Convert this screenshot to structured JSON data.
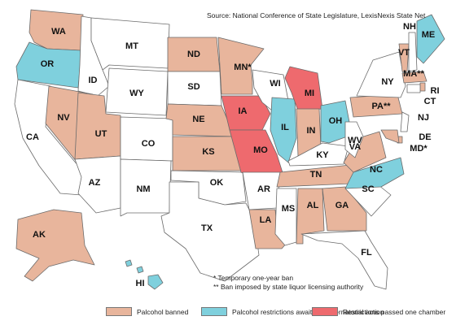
{
  "source": "Source: National Conference of State Legislature, LexisNexis State Net",
  "notes": [
    "* Temporary one-year ban",
    "** Ban imposed by state liquor licensing authority"
  ],
  "colors": {
    "banned": "#e8b59c",
    "awaiting": "#7fd0dd",
    "passed_one_chamber": "#ee6a6e",
    "none": "#ffffff"
  },
  "legend": [
    {
      "label": "Palcohol banned",
      "status": "banned"
    },
    {
      "label": "Palcohol restrictions awaiting gubernatorial action",
      "status": "awaiting"
    },
    {
      "label": "Restrictions passed one chamber",
      "status": "passed_one_chamber"
    }
  ],
  "states": [
    {
      "abbr": "WA",
      "status": "banned"
    },
    {
      "abbr": "OR",
      "status": "awaiting"
    },
    {
      "abbr": "CA",
      "status": "none"
    },
    {
      "abbr": "ID",
      "status": "none"
    },
    {
      "abbr": "NV",
      "status": "banned"
    },
    {
      "abbr": "MT",
      "status": "none"
    },
    {
      "abbr": "WY",
      "status": "none"
    },
    {
      "abbr": "UT",
      "status": "banned"
    },
    {
      "abbr": "AZ",
      "status": "none"
    },
    {
      "abbr": "CO",
      "status": "none"
    },
    {
      "abbr": "NM",
      "status": "none"
    },
    {
      "abbr": "ND",
      "status": "banned"
    },
    {
      "abbr": "SD",
      "status": "none"
    },
    {
      "abbr": "NE",
      "status": "banned"
    },
    {
      "abbr": "KS",
      "status": "banned"
    },
    {
      "abbr": "OK",
      "status": "none"
    },
    {
      "abbr": "TX",
      "status": "none"
    },
    {
      "abbr": "MN*",
      "status": "banned"
    },
    {
      "abbr": "IA",
      "status": "passed_one_chamber"
    },
    {
      "abbr": "MO",
      "status": "passed_one_chamber"
    },
    {
      "abbr": "AR",
      "status": "none"
    },
    {
      "abbr": "LA",
      "status": "banned"
    },
    {
      "abbr": "WI",
      "status": "none"
    },
    {
      "abbr": "IL",
      "status": "awaiting"
    },
    {
      "abbr": "MS",
      "status": "none"
    },
    {
      "abbr": "MI",
      "status": "passed_one_chamber"
    },
    {
      "abbr": "IN",
      "status": "banned"
    },
    {
      "abbr": "OH",
      "status": "awaiting"
    },
    {
      "abbr": "KY",
      "status": "none"
    },
    {
      "abbr": "TN",
      "status": "banned"
    },
    {
      "abbr": "AL",
      "status": "banned"
    },
    {
      "abbr": "GA",
      "status": "banned"
    },
    {
      "abbr": "FL",
      "status": "none"
    },
    {
      "abbr": "SC",
      "status": "none"
    },
    {
      "abbr": "NC",
      "status": "awaiting"
    },
    {
      "abbr": "VA",
      "status": "banned"
    },
    {
      "abbr": "WV",
      "status": "none"
    },
    {
      "abbr": "PA**",
      "status": "banned"
    },
    {
      "abbr": "NY",
      "status": "none"
    },
    {
      "abbr": "VT",
      "status": "banned"
    },
    {
      "abbr": "NH",
      "status": "none"
    },
    {
      "abbr": "ME",
      "status": "awaiting"
    },
    {
      "abbr": "MA**",
      "status": "banned"
    },
    {
      "abbr": "RI",
      "status": "banned"
    },
    {
      "abbr": "CT",
      "status": "none"
    },
    {
      "abbr": "NJ",
      "status": "none"
    },
    {
      "abbr": "DE",
      "status": "banned"
    },
    {
      "abbr": "MD*",
      "status": "banned"
    },
    {
      "abbr": "AK",
      "status": "banned"
    },
    {
      "abbr": "HI",
      "status": "awaiting"
    }
  ]
}
